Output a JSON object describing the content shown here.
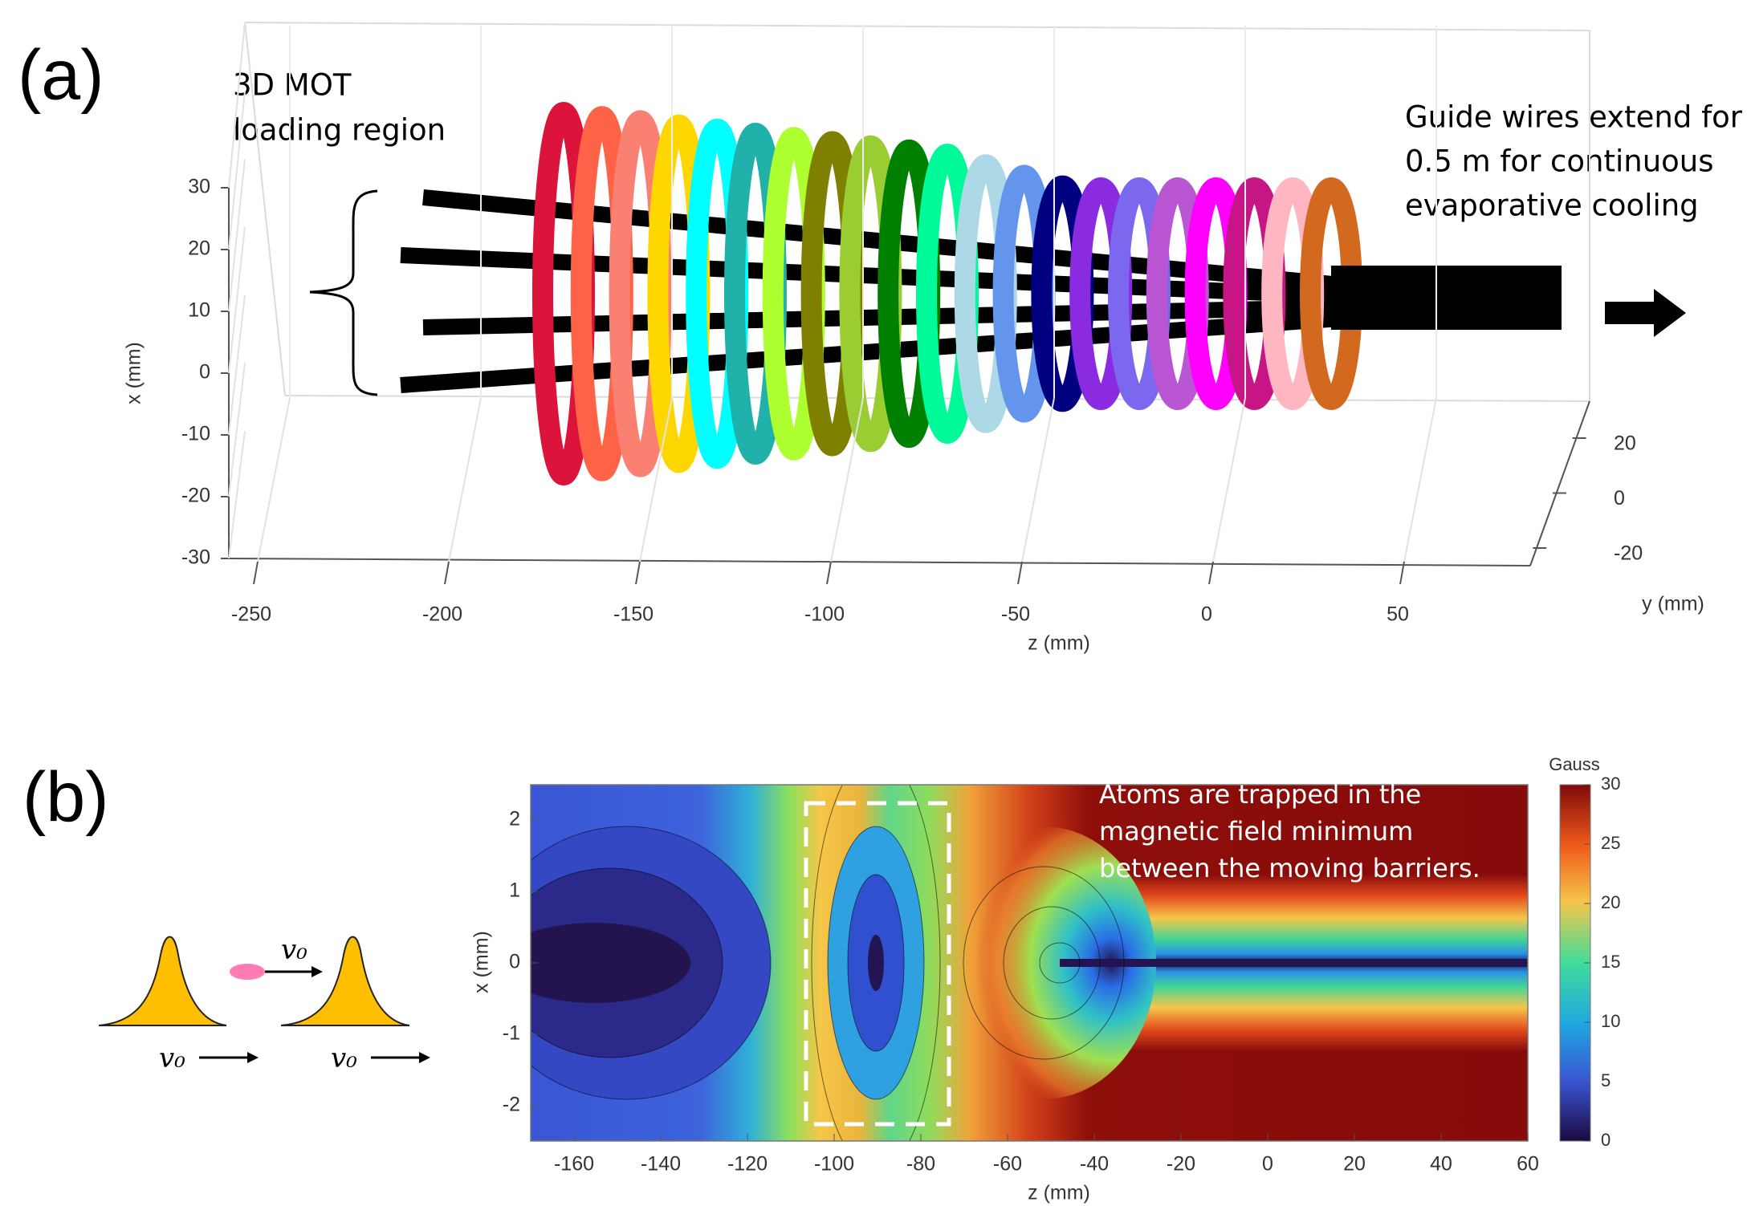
{
  "panel_a": {
    "label": "(a)",
    "annotation_left": [
      "3D MOT",
      "loading region"
    ],
    "annotation_right": [
      "Guide wires extend for",
      "0.5 m for continuous",
      "evaporative cooling"
    ],
    "x_axis_label": "x (mm)",
    "x_ticks": [
      30,
      20,
      10,
      0,
      -10,
      -20,
      -30
    ],
    "z_axis_label": "z (mm)",
    "z_ticks": [
      -250,
      -200,
      -150,
      -100,
      -50,
      0,
      50
    ],
    "y_axis_label": "y (mm)",
    "y_ticks": [
      20,
      0,
      -20
    ]
  },
  "panel_b": {
    "label": "(b)",
    "velocity_labels": [
      "v₀",
      "v₀",
      "v₀"
    ],
    "annotation": [
      "Atoms are trapped in the",
      "magnetic field minimum",
      "between the moving barriers."
    ],
    "x_axis_label": "z (mm)",
    "x_ticks": [
      -160,
      -140,
      -120,
      -100,
      -80,
      -60,
      -40,
      -20,
      0,
      20,
      40,
      60
    ],
    "y_axis_label": "x (mm)",
    "y_ticks": [
      2,
      1,
      0,
      -1,
      -2
    ],
    "colorbar_label": "Gauss",
    "colorbar_ticks": [
      30,
      25,
      20,
      15,
      10,
      5,
      0
    ]
  }
}
